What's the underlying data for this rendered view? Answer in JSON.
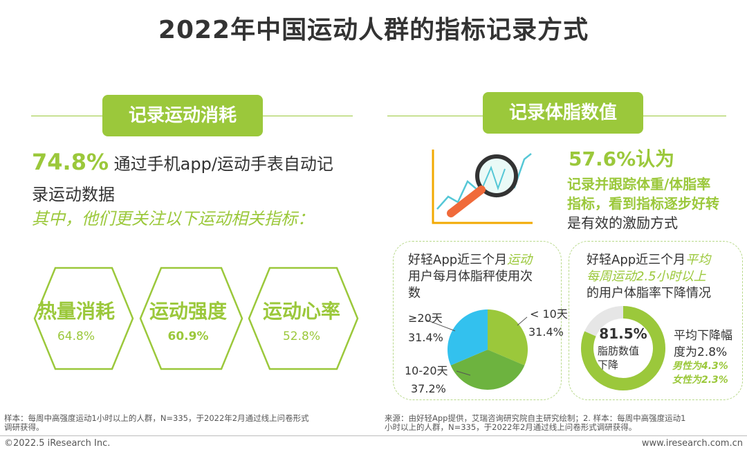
{
  "title": "2022年中国运动人群的指标记录方式",
  "left": {
    "tag": "记录运动消耗",
    "pct": "74.8%",
    "desc_line1": "通过手机app/运动手表自动记",
    "desc_line2": "录运动数据",
    "subtitle": "其中，他们更关注以下运动相关指标：",
    "metrics": [
      {
        "label": "热量消耗",
        "pct": "64.8%"
      },
      {
        "label": "运动强度",
        "pct": "60.9%"
      },
      {
        "label": "运动心率",
        "pct": "52.8%"
      }
    ]
  },
  "right": {
    "tag": "记录体脂数值",
    "pct_line": "57.6%认为",
    "line1": "记录并跟踪体重/体脂率",
    "line2": "指标，看到指标逐步好转",
    "line3": "是有效的激励方式",
    "pie_card": {
      "title_part1": "好轻App近三个月",
      "title_part2": "运动",
      "title_line2": "用户每月体脂秤使用次",
      "title_line3": "数",
      "label_a": "≥20天",
      "value_a": "31.4%",
      "label_b": "< 10天",
      "value_b": "31.4%",
      "label_c": "10-20天",
      "value_c": "37.2%"
    },
    "donut_card": {
      "title_part1": "好轻App近三个月",
      "title_part2": "平均",
      "title_line2": "每周运动2.5小时以上",
      "title_line3": "的用户体脂率下降情况",
      "center_pct": "81.5%",
      "center_l1": "脂肪数值",
      "center_l2": "下降",
      "side_l1": "平均下降幅",
      "side_l2": "度为2.8%",
      "side_l3": "男性为4.3%",
      "side_l4": "女性为2.3%"
    }
  },
  "footer": {
    "left_note_l1": "样本：每周中高强度运动1小时以上的人群，N=335，于2022年2月通过线上问卷形式",
    "left_note_l2": "调研获得。",
    "right_note_l1": "来源：由好轻App提供，艾瑞咨询研究院自主研究绘制；2. 样本：每周中高强度运动1",
    "right_note_l2": "小时以上的人群，N=335，于2022年2月通过线上问卷形式调研获得。",
    "copyright": "©2022.5 iResearch Inc.",
    "website": "www.iresearch.com.cn"
  },
  "chart_data": {
    "type": "pie",
    "categories": [
      "< 10天",
      "10-20天",
      "≥20天"
    ],
    "values": [
      31.4,
      37.2,
      31.4
    ],
    "colors": [
      "#9bc83b",
      "#6db33f",
      "#33c1ee"
    ]
  },
  "donut": {
    "value": 81.5,
    "color": "#9bc83b",
    "track": "#e6e6e6"
  },
  "colors": {
    "accent": "#9bc83b",
    "text": "#333333",
    "blue": "#33c1ee"
  }
}
